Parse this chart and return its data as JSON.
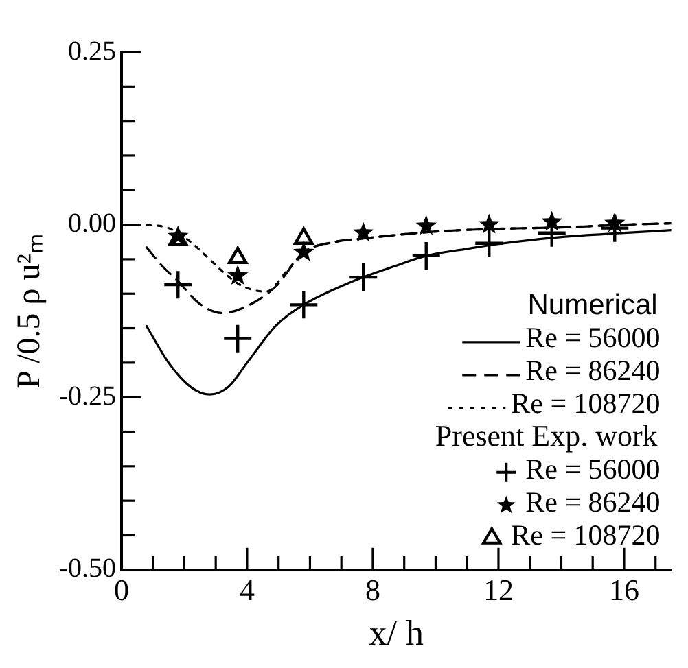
{
  "chart_data": {
    "type": "line",
    "xlabel": "x/ h",
    "ylabel": "P /0.5 ρ u²ₘ",
    "legend_title": "Numerical",
    "annotations": [
      "Present Exp. work"
    ],
    "xlim": [
      0,
      17.5
    ],
    "ylim": [
      -0.5,
      0.25
    ],
    "xticks": [
      0,
      {
        "value": 1,
        "label": null
      },
      {
        "value": 2,
        "label": null
      },
      {
        "value": 3,
        "label": null
      },
      4,
      {
        "value": 5,
        "label": null
      },
      {
        "value": 6,
        "label": null
      },
      {
        "value": 7,
        "label": null
      },
      8,
      {
        "value": 9,
        "label": null
      },
      {
        "value": 10,
        "label": null
      },
      {
        "value": 11,
        "label": null
      },
      12,
      {
        "value": 13,
        "label": null
      },
      {
        "value": 14,
        "label": null
      },
      {
        "value": 15,
        "label": null
      },
      16,
      {
        "value": 17,
        "label": null
      }
    ],
    "yticks": [
      {
        "value": -0.5,
        "label": "-0.50"
      },
      {
        "value": -0.45,
        "label": null
      },
      {
        "value": -0.4,
        "label": null
      },
      {
        "value": -0.35,
        "label": null
      },
      {
        "value": -0.3,
        "label": null
      },
      {
        "value": -0.25,
        "label": "-0.25"
      },
      {
        "value": -0.2,
        "label": null
      },
      {
        "value": -0.15,
        "label": null
      },
      {
        "value": -0.1,
        "label": null
      },
      {
        "value": -0.05,
        "label": null
      },
      {
        "value": 0,
        "label": "0.00"
      },
      {
        "value": 0.05,
        "label": null
      },
      {
        "value": 0.1,
        "label": null
      },
      {
        "value": 0.15,
        "label": null
      },
      {
        "value": 0.2,
        "label": null
      },
      {
        "value": 0.25,
        "label": "0.25"
      }
    ],
    "grid": false,
    "legend": "bottom right",
    "series": [
      {
        "name": "Re = 56000",
        "line_style": "solid",
        "marker": "none",
        "color": "#000000",
        "x": [
          0.8,
          1.5,
          2.2,
          2.8,
          3.4,
          4,
          4.9,
          5.8,
          6.8,
          7.7,
          8.7,
          9.7,
          11,
          12,
          14,
          16,
          17.5
        ],
        "values": [
          -0.147,
          -0.2,
          -0.235,
          -0.246,
          -0.235,
          -0.2,
          -0.147,
          -0.116,
          -0.093,
          -0.076,
          -0.06,
          -0.045,
          -0.035,
          -0.028,
          -0.018,
          -0.012,
          -0.008
        ]
      },
      {
        "name": "Re = 86240",
        "line_style": "dashed",
        "marker": "none",
        "color": "#000000",
        "x": [
          0.8,
          1.3,
          1.8,
          2.5,
          3.2,
          3.9,
          4.9,
          5.8,
          6.8,
          7.7,
          10,
          12,
          14,
          16,
          17.5
        ],
        "values": [
          -0.033,
          -0.06,
          -0.082,
          -0.115,
          -0.128,
          -0.12,
          -0.09,
          -0.04,
          -0.025,
          -0.02,
          -0.01,
          -0.006,
          -0.004,
          0,
          0.002
        ]
      },
      {
        "name": "Re = 108720",
        "line_style": "dotted",
        "marker": "none",
        "color": "#000000",
        "x": [
          0.8,
          1.5,
          2.2,
          2.8,
          3.4,
          3.9,
          4.6,
          5.3,
          5.8,
          6.8,
          7.7,
          10,
          12,
          14,
          16,
          17.5
        ],
        "values": [
          0,
          -0.005,
          -0.025,
          -0.05,
          -0.075,
          -0.09,
          -0.097,
          -0.065,
          -0.04,
          -0.025,
          -0.02,
          -0.01,
          -0.006,
          -0.004,
          0,
          0.002
        ]
      },
      {
        "name": "Re = 56000",
        "type": "scatter",
        "marker": "cross",
        "color": "#000000",
        "x": [
          1.8,
          3.7,
          5.8,
          7.7,
          9.7,
          11.7,
          13.7,
          15.7
        ],
        "values": [
          -0.087,
          -0.165,
          -0.116,
          -0.076,
          -0.045,
          -0.027,
          -0.012,
          -0.005
        ]
      },
      {
        "name": "Re = 86240",
        "type": "scatter",
        "marker": "star",
        "color": "#000000",
        "x": [
          1.8,
          3.7,
          5.8,
          7.7,
          9.7,
          11.7,
          13.7,
          15.7
        ],
        "values": [
          -0.017,
          -0.074,
          -0.04,
          -0.012,
          -0.002,
          0,
          0.004,
          0.002
        ]
      },
      {
        "name": "Re = 108720",
        "type": "scatter",
        "marker": "triangle",
        "color": "#000000",
        "x": [
          1.8,
          3.7,
          5.8
        ],
        "values": [
          -0.022,
          -0.048,
          -0.02
        ]
      }
    ]
  }
}
